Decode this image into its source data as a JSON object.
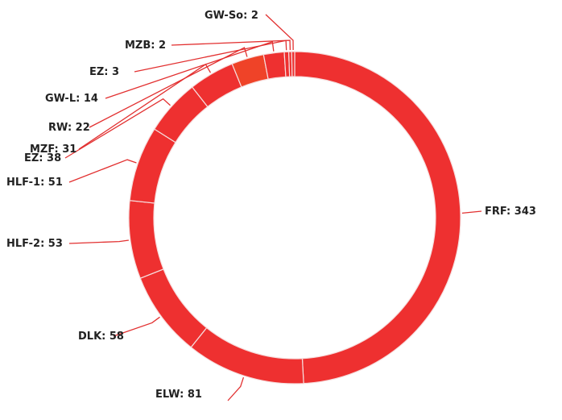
{
  "chart_data": {
    "type": "pie",
    "variant": "donut",
    "title": "",
    "legend": "none",
    "label_format": "{label}: {value}",
    "colors": {
      "default": "#ee3030",
      "highlight": "#ef4328",
      "separator": "#f6dede",
      "leader": "#e23030",
      "label": "#222222"
    },
    "slices": [
      {
        "label": "FRF",
        "value": 343
      },
      {
        "label": "ELW",
        "value": 81
      },
      {
        "label": "DLK",
        "value": 58
      },
      {
        "label": "HLF-2",
        "value": 53
      },
      {
        "label": "HLF-1",
        "value": 51
      },
      {
        "label": "EZ",
        "value": 38
      },
      {
        "label": "MZF",
        "value": 31
      },
      {
        "label": "RW",
        "value": 22,
        "highlight": true
      },
      {
        "label": "GW-L",
        "value": 14
      },
      {
        "label": "EZ",
        "value": 3
      },
      {
        "label": "MZB",
        "value": 2
      },
      {
        "label": "GW-So",
        "value": 2
      }
    ]
  }
}
